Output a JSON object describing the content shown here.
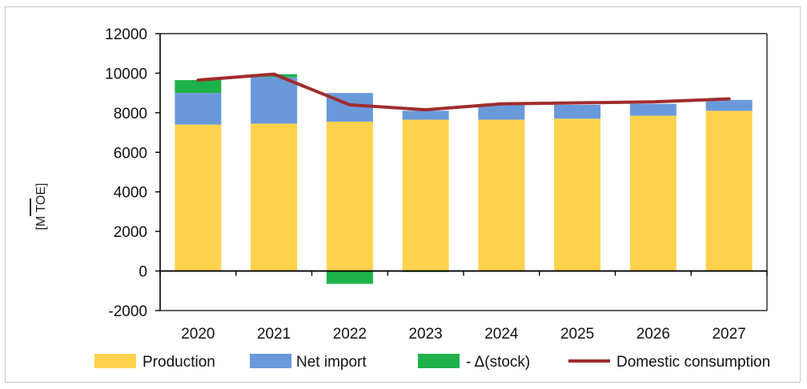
{
  "chart_data": {
    "type": "bar",
    "stacked": true,
    "categories": [
      "2020",
      "2021",
      "2022",
      "2023",
      "2024",
      "2025",
      "2026",
      "2027"
    ],
    "ylabel": "[M TOE]",
    "ylim": [
      -2000,
      12000
    ],
    "yticks": [
      -2000,
      0,
      2000,
      4000,
      6000,
      8000,
      10000,
      12000
    ],
    "ytick_labels": [
      "-2000",
      "0",
      "2000",
      "4000",
      "6000",
      "8000",
      "10000",
      "12000"
    ],
    "grid": false,
    "legend_position": "bottom",
    "series": [
      {
        "name": "Production",
        "kind": "bar",
        "color": "#FFD24D",
        "values": [
          7400,
          7450,
          7550,
          7650,
          7650,
          7700,
          7850,
          8100
        ]
      },
      {
        "name": "Net import",
        "kind": "bar",
        "color": "#6A99DB",
        "values": [
          1600,
          2350,
          1450,
          450,
          750,
          700,
          600,
          550
        ]
      },
      {
        "name": "- Δ(stock)",
        "kind": "bar",
        "color": "#1DB14B",
        "values": [
          650,
          150,
          -650,
          -50,
          0,
          0,
          0,
          0
        ]
      },
      {
        "name": "Domestic consumption",
        "kind": "line",
        "color": "#A02C2C",
        "values": [
          9650,
          9950,
          8400,
          8150,
          8450,
          8500,
          8550,
          8700
        ]
      }
    ]
  }
}
